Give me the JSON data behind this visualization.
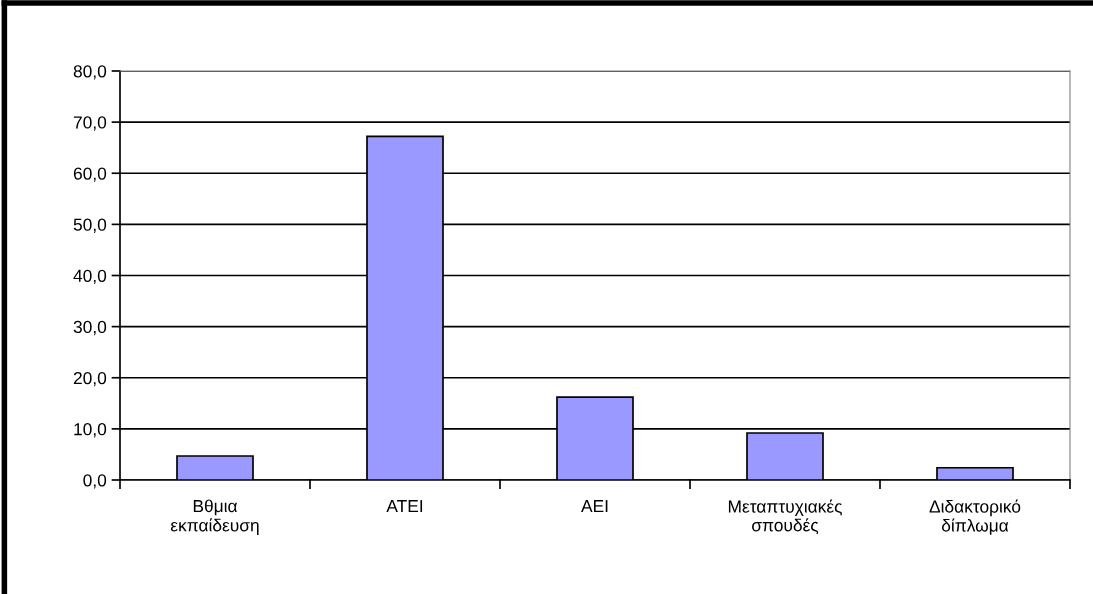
{
  "chart_data": {
    "type": "bar",
    "categories": [
      "Βθμια\nεκπαίδευση",
      "ΑΤΕΙ",
      "ΑΕΙ",
      "Μεταπτυχιακές\nσπουδές",
      "Διδακτορικό\nδίπλωμα"
    ],
    "values": [
      4.7,
      67.2,
      16.2,
      9.2,
      2.4
    ],
    "color": "#9999ff",
    "ylim": [
      0,
      80
    ],
    "yticks": [
      {
        "value": 0,
        "label": "0,0"
      },
      {
        "value": 10,
        "label": "10,0"
      },
      {
        "value": 20,
        "label": "20,0"
      },
      {
        "value": 30,
        "label": "30,0"
      },
      {
        "value": 40,
        "label": "40,0"
      },
      {
        "value": 50,
        "label": "50,0"
      },
      {
        "value": 60,
        "label": "60,0"
      },
      {
        "value": 70,
        "label": "70,0"
      },
      {
        "value": 80,
        "label": "80,0"
      }
    ],
    "grid": "y"
  }
}
